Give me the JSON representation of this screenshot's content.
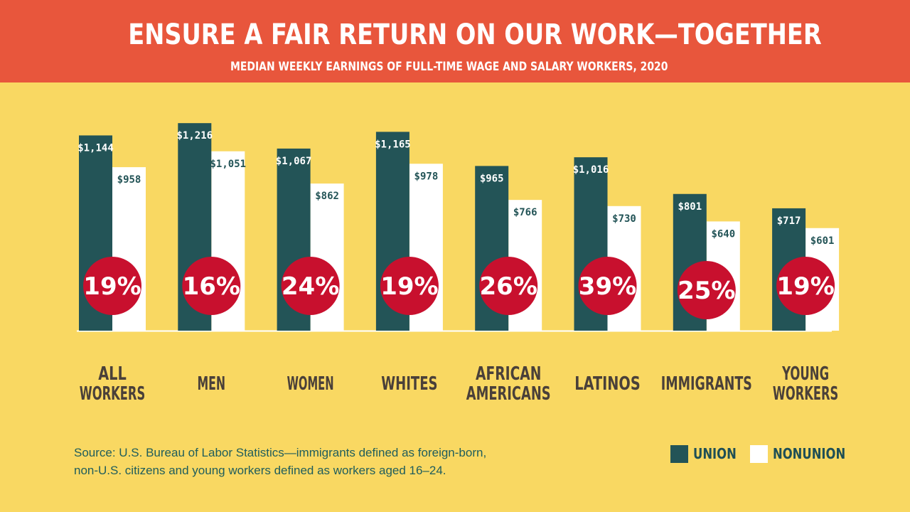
{
  "header": {
    "title": "ENSURE A FAIR RETURN ON OUR WORK—TOGETHER",
    "subtitle": "MEDIAN WEEKLY EARNINGS OF FULL-TIME  WAGE AND SALARY WORKERS, 2020"
  },
  "colors": {
    "background": "#f9d862",
    "header": "#e8563c",
    "union": "#235457",
    "nonunion": "#ffffff",
    "premium_circle": "#c8102e",
    "category_text": "#4a4039"
  },
  "chart_data": {
    "type": "bar",
    "title": "ENSURE A FAIR RETURN ON OUR WORK—TOGETHER",
    "subtitle": "MEDIAN WEEKLY EARNINGS OF FULL-TIME  WAGE AND SALARY WORKERS, 2020",
    "xlabel": "",
    "ylabel": "",
    "ylim": [
      0,
      1300
    ],
    "categories": [
      [
        "ALL",
        "WORKERS"
      ],
      [
        "MEN"
      ],
      [
        "WOMEN"
      ],
      [
        "WHITES"
      ],
      [
        "AFRICAN",
        "AMERICANS"
      ],
      [
        "LATINOS"
      ],
      [
        "IMMIGRANTS"
      ],
      [
        "YOUNG",
        "WORKERS"
      ]
    ],
    "series": [
      {
        "name": "UNION",
        "values": [
          1144,
          1216,
          1067,
          1165,
          965,
          1016,
          801,
          717
        ],
        "labels": [
          "$1,144",
          "$1,216",
          "$1,067",
          "$1,165",
          "$965",
          "$1,016",
          "$801",
          "$717"
        ]
      },
      {
        "name": "NONUNION",
        "values": [
          958,
          1051,
          862,
          978,
          766,
          730,
          640,
          601
        ],
        "labels": [
          "$958",
          "$1,051",
          "$862",
          "$978",
          "$766",
          "$730",
          "$640",
          "$601"
        ]
      }
    ],
    "union_premium": [
      "19%",
      "16%",
      "24%",
      "19%",
      "26%",
      "39%",
      "25%",
      "19%"
    ],
    "legend": [
      "UNION",
      "NONUNION"
    ],
    "legend_position": "bottom-right",
    "grid": false
  },
  "source": {
    "line1": "Source: U.S. Bureau of Labor Statistics—immigrants defined as foreign-born,",
    "line2": "non-U.S. citizens and young workers defined as workers aged 16–24."
  },
  "legend": {
    "union_label": "UNION",
    "nonunion_label": "NONUNION"
  }
}
